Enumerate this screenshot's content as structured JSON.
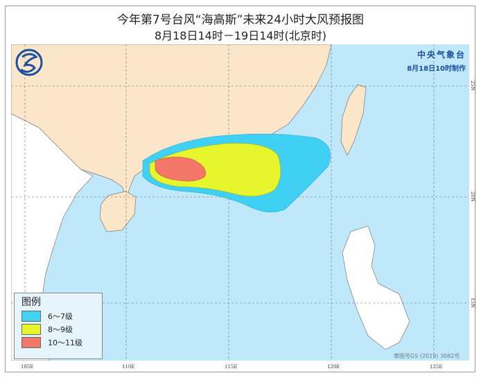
{
  "title": "今年第7号台风“海高斯”未来24小时大风预报图",
  "subtitle": "8月18日14时－19日14时(北京时)",
  "agency": {
    "name": "中央气象台",
    "issued": "8月18日10时制作"
  },
  "legend": {
    "title": "图例",
    "items": [
      {
        "label": "6～7级",
        "color": "#3fd0f4"
      },
      {
        "label": "8～9级",
        "color": "#e6f52c"
      },
      {
        "label": "10～11级",
        "color": "#f4786a"
      }
    ]
  },
  "axes": {
    "lon_ticks": [
      "105E",
      "110E",
      "115E",
      "120E",
      "125E"
    ],
    "lat_ticks": [
      "25N",
      "20N",
      "15N"
    ]
  },
  "approval": "审图号GS (2019) 3082号",
  "colors": {
    "sea": "#bfe9fb",
    "china_land": "#fbe6c9",
    "other_land": "#ffffff"
  }
}
